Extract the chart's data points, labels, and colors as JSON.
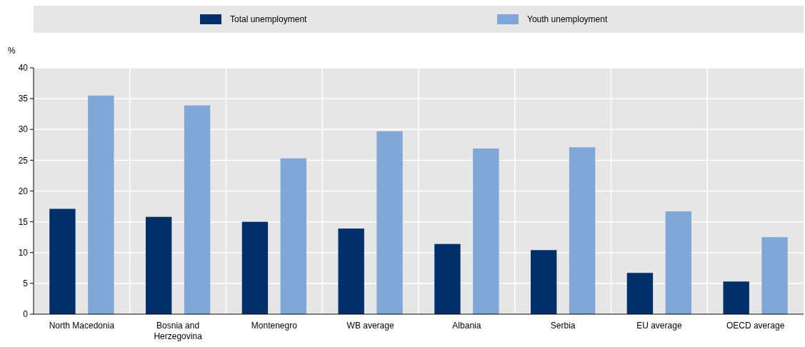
{
  "chart_data": {
    "type": "bar",
    "ylabel": "%",
    "categories": [
      "North Macedonia",
      "Bosnia and Herzegovina",
      "Montenegro",
      "WB average",
      "Albania",
      "Serbia",
      "EU average",
      "OECD average"
    ],
    "series": [
      {
        "name": "Total unemployment",
        "color": "#002f6c",
        "values": [
          17.1,
          15.8,
          15.0,
          13.9,
          11.4,
          10.4,
          6.7,
          5.3
        ]
      },
      {
        "name": "Youth unemployment",
        "color": "#7fa8d9",
        "values": [
          35.5,
          33.9,
          25.3,
          29.7,
          26.9,
          27.1,
          16.7,
          12.5
        ]
      }
    ],
    "ylim": [
      0,
      40
    ],
    "yticks": [
      0,
      5,
      10,
      15,
      20,
      25,
      30,
      35,
      40
    ],
    "grid": true,
    "legend": "top"
  }
}
